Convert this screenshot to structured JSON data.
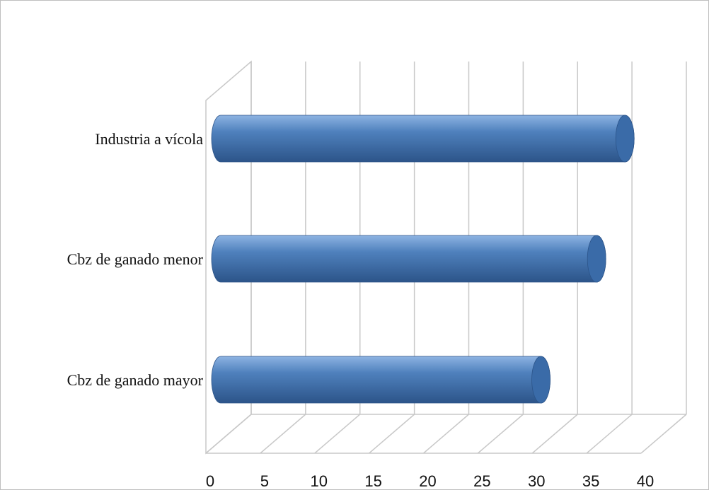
{
  "chart_data": {
    "type": "bar",
    "orientation": "horizontal",
    "style": "3d-cylinder",
    "title": "",
    "xlabel": "",
    "ylabel": "",
    "categories": [
      "Cbz de ganado mayor",
      "Cbz de ganado menor",
      "Industria avícola"
    ],
    "display_labels": [
      "Cbz de ganado mayor",
      "Cbz de ganado menor",
      "Industria a vícola"
    ],
    "values": [
      30.5,
      35.8,
      38.5
    ],
    "xlim": [
      0,
      40
    ],
    "xticks": [
      "0",
      "5",
      "10",
      "15",
      "20",
      "25",
      "30",
      "35",
      "40"
    ],
    "grid": true,
    "legend": "none",
    "bar_color": "#4f81bd",
    "bar_highlight": "#8db3e2",
    "bar_shadow": "#2c5489",
    "cap_color": "#3a6ba8"
  }
}
